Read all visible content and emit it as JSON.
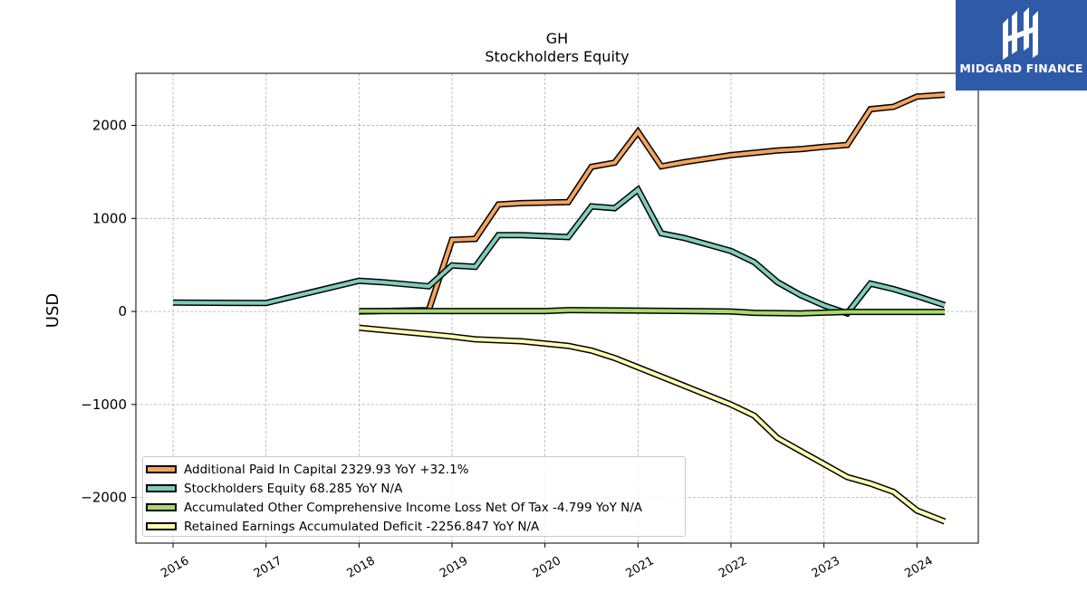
{
  "chart_data": {
    "type": "line",
    "ticker": "GH",
    "title": "Stockholders  Equity",
    "ylabel": "USD",
    "xlim": [
      2015.6,
      2024.66
    ],
    "ylim": [
      -2490,
      2560
    ],
    "grid": true,
    "legend_position": "lower-left",
    "x_ticks": [
      "2016",
      "2017",
      "2018",
      "2019",
      "2020",
      "2021",
      "2022",
      "2023",
      "2024"
    ],
    "y_ticks": [
      -2000,
      -1000,
      0,
      1000,
      2000
    ],
    "series": [
      {
        "name": "Additional Paid In Capital",
        "legend_label": "Additional Paid In Capital  2329.93 YoY +32.1%",
        "color": "#f4a460",
        "points": [
          [
            2018.0,
            0
          ],
          [
            2018.75,
            15
          ],
          [
            2019.0,
            770
          ],
          [
            2019.25,
            780
          ],
          [
            2019.5,
            1150
          ],
          [
            2019.75,
            1165
          ],
          [
            2020.25,
            1175
          ],
          [
            2020.5,
            1555
          ],
          [
            2020.75,
            1600
          ],
          [
            2021.0,
            1930
          ],
          [
            2021.25,
            1560
          ],
          [
            2021.5,
            1605
          ],
          [
            2022.0,
            1680
          ],
          [
            2022.5,
            1730
          ],
          [
            2022.75,
            1745
          ],
          [
            2023.0,
            1770
          ],
          [
            2023.25,
            1790
          ],
          [
            2023.5,
            2175
          ],
          [
            2023.75,
            2200
          ],
          [
            2024.0,
            2310
          ],
          [
            2024.3,
            2330
          ]
        ]
      },
      {
        "name": "Stockholders Equity",
        "legend_label": "Stockholders Equity  68.285 YoY N/A",
        "color": "#7fcdbb",
        "points": [
          [
            2016.0,
            95
          ],
          [
            2017.0,
            90
          ],
          [
            2018.0,
            330
          ],
          [
            2018.25,
            315
          ],
          [
            2018.75,
            270
          ],
          [
            2019.0,
            495
          ],
          [
            2019.25,
            480
          ],
          [
            2019.5,
            820
          ],
          [
            2019.75,
            820
          ],
          [
            2020.25,
            800
          ],
          [
            2020.5,
            1130
          ],
          [
            2020.75,
            1110
          ],
          [
            2021.0,
            1310
          ],
          [
            2021.25,
            840
          ],
          [
            2021.5,
            790
          ],
          [
            2022.0,
            650
          ],
          [
            2022.25,
            530
          ],
          [
            2022.5,
            315
          ],
          [
            2022.75,
            175
          ],
          [
            2023.0,
            65
          ],
          [
            2023.25,
            -20
          ],
          [
            2023.5,
            300
          ],
          [
            2023.75,
            240
          ],
          [
            2024.0,
            165
          ],
          [
            2024.3,
            68
          ]
        ]
      },
      {
        "name": "Accumulated Other Comprehensive Income Loss Net Of Tax",
        "legend_label": "Accumulated Other Comprehensive Income Loss Net Of Tax  -4.799 YoY N/A",
        "color": "#a6d96a",
        "points": [
          [
            2018.0,
            5
          ],
          [
            2019.0,
            5
          ],
          [
            2020.0,
            5
          ],
          [
            2020.25,
            15
          ],
          [
            2021.0,
            10
          ],
          [
            2022.0,
            0
          ],
          [
            2022.25,
            -15
          ],
          [
            2022.75,
            -20
          ],
          [
            2023.25,
            -5
          ],
          [
            2024.3,
            -5
          ]
        ]
      },
      {
        "name": "Retained Earnings Accumulated Deficit",
        "legend_label": "Retained Earnings Accumulated Deficit  -2256.847 YoY N/A",
        "color": "#ffffb3",
        "points": [
          [
            2018.0,
            -175
          ],
          [
            2018.75,
            -245
          ],
          [
            2019.0,
            -270
          ],
          [
            2019.25,
            -300
          ],
          [
            2019.75,
            -320
          ],
          [
            2020.25,
            -370
          ],
          [
            2020.5,
            -420
          ],
          [
            2020.75,
            -500
          ],
          [
            2021.0,
            -600
          ],
          [
            2021.25,
            -700
          ],
          [
            2021.5,
            -800
          ],
          [
            2021.75,
            -900
          ],
          [
            2022.0,
            -1000
          ],
          [
            2022.25,
            -1120
          ],
          [
            2022.5,
            -1360
          ],
          [
            2022.75,
            -1500
          ],
          [
            2023.0,
            -1640
          ],
          [
            2023.25,
            -1780
          ],
          [
            2023.5,
            -1850
          ],
          [
            2023.75,
            -1940
          ],
          [
            2024.0,
            -2140
          ],
          [
            2024.3,
            -2257
          ]
        ]
      }
    ]
  },
  "logo": {
    "text": "MIDGARD FINANCE",
    "color": "#2f5aa8"
  }
}
